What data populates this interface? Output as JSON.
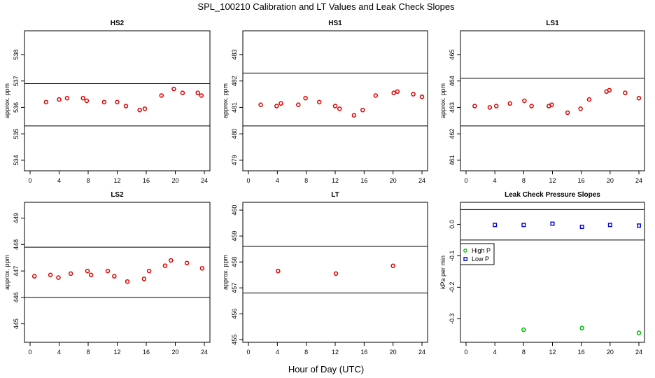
{
  "figure": {
    "title": "SPL_100210  Calibration and LT Values and Leak Check Slopes",
    "xlabel": "Hour of Day (UTC)"
  },
  "chart_data": [
    {
      "type": "scatter",
      "title": "HS2",
      "ylabel": "approx. ppm",
      "xlim": [
        0,
        24
      ],
      "ylim": [
        533.6,
        538.9
      ],
      "xticks": [
        0,
        4,
        8,
        12,
        16,
        20,
        24
      ],
      "yticks": [
        534,
        535,
        536,
        537,
        538
      ],
      "hlines": [
        536.9,
        535.3
      ],
      "series": [
        {
          "color": "#dd0000",
          "marker": "circle",
          "x": [
            2.2,
            4.0,
            5.1,
            7.3,
            7.8,
            10.2,
            12.0,
            13.2,
            15.1,
            15.8,
            18.1,
            19.8,
            21.0,
            23.1,
            23.6
          ],
          "y": [
            536.2,
            536.3,
            536.35,
            536.35,
            536.25,
            536.2,
            536.2,
            536.05,
            535.9,
            535.95,
            536.45,
            536.7,
            536.55,
            536.55,
            536.45
          ]
        }
      ]
    },
    {
      "type": "scatter",
      "title": "HS1",
      "ylabel": "approx. ppm",
      "xlim": [
        0,
        24
      ],
      "ylim": [
        478.6,
        483.9
      ],
      "xticks": [
        0,
        4,
        8,
        12,
        16,
        20,
        24
      ],
      "yticks": [
        479,
        480,
        481,
        482,
        483
      ],
      "hlines": [
        482.3,
        480.3
      ],
      "series": [
        {
          "color": "#dd0000",
          "marker": "circle",
          "x": [
            1.7,
            3.9,
            4.5,
            6.9,
            7.9,
            9.8,
            12.0,
            12.6,
            14.6,
            15.8,
            17.6,
            20.1,
            20.6,
            22.8,
            24.0
          ],
          "y": [
            481.1,
            481.05,
            481.15,
            481.1,
            481.35,
            481.2,
            481.05,
            480.95,
            480.7,
            480.9,
            481.45,
            481.55,
            481.6,
            481.5,
            481.4
          ]
        }
      ]
    },
    {
      "type": "scatter",
      "title": "LS1",
      "ylabel": "approx. ppm",
      "xlim": [
        0,
        24
      ],
      "ylim": [
        460.6,
        465.9
      ],
      "xticks": [
        0,
        4,
        8,
        12,
        16,
        20,
        24
      ],
      "yticks": [
        461,
        462,
        463,
        464,
        465
      ],
      "hlines": [
        464.1,
        462.3
      ],
      "series": [
        {
          "color": "#dd0000",
          "marker": "circle",
          "x": [
            1.2,
            3.3,
            4.2,
            6.1,
            8.1,
            9.1,
            11.5,
            11.9,
            14.1,
            15.9,
            17.1,
            19.5,
            19.9,
            22.1,
            24.0
          ],
          "y": [
            463.05,
            463.0,
            463.05,
            463.15,
            463.25,
            463.05,
            463.05,
            463.1,
            462.8,
            462.95,
            463.3,
            463.6,
            463.65,
            463.55,
            463.35
          ]
        }
      ]
    },
    {
      "type": "scatter",
      "title": "LS2",
      "ylabel": "approx. ppm",
      "xlim": [
        0,
        24
      ],
      "ylim": [
        444.3,
        449.6
      ],
      "xticks": [
        0,
        4,
        8,
        12,
        16,
        20,
        24
      ],
      "yticks": [
        445,
        446,
        447,
        448,
        449
      ],
      "hlines": [
        447.9,
        446.0
      ],
      "series": [
        {
          "color": "#dd0000",
          "marker": "circle",
          "x": [
            0.6,
            2.8,
            3.9,
            5.6,
            7.9,
            8.4,
            10.7,
            11.6,
            13.4,
            15.7,
            16.4,
            18.6,
            19.4,
            21.6,
            23.7
          ],
          "y": [
            446.8,
            446.85,
            446.75,
            446.9,
            447.0,
            446.85,
            447.0,
            446.8,
            446.6,
            446.7,
            447.0,
            447.2,
            447.4,
            447.3,
            447.1
          ]
        }
      ]
    },
    {
      "type": "scatter",
      "title": "LT",
      "ylabel": "approx. ppm",
      "xlim": [
        0,
        24
      ],
      "ylim": [
        454.9,
        460.3
      ],
      "xticks": [
        0,
        4,
        8,
        12,
        16,
        20,
        24
      ],
      "yticks": [
        455,
        456,
        457,
        458,
        459,
        460
      ],
      "hlines": [
        458.6,
        456.8
      ],
      "series": [
        {
          "color": "#dd0000",
          "marker": "circle",
          "x": [
            4.1,
            12.1,
            20.0
          ],
          "y": [
            457.65,
            457.55,
            457.85
          ]
        }
      ]
    },
    {
      "type": "scatter",
      "title": "Leak Check Pressure Slopes",
      "ylabel": "kPa per min",
      "xlim": [
        0,
        24
      ],
      "ylim": [
        -0.375,
        0.07
      ],
      "xticks": [
        0,
        4,
        8,
        12,
        16,
        20,
        24
      ],
      "yticks": [
        0.0,
        -0.1,
        -0.2,
        -0.3
      ],
      "ytick_labels": [
        "0.0",
        "-0.1",
        "-0.2",
        "-0.3"
      ],
      "hlines": [
        0.047,
        -0.05
      ],
      "legend": {
        "position": "middle-left"
      },
      "series": [
        {
          "name": "High P",
          "color": "#00bb00",
          "marker": "circle",
          "x": [
            8.0,
            16.1,
            24.0
          ],
          "y": [
            -0.335,
            -0.33,
            -0.345
          ]
        },
        {
          "name": "Low P",
          "color": "#0000dd",
          "marker": "square",
          "x": [
            4.0,
            8.0,
            12.0,
            16.1,
            20.0,
            24.0
          ],
          "y": [
            -0.002,
            -0.002,
            0.002,
            -0.008,
            -0.002,
            -0.004
          ]
        }
      ]
    }
  ]
}
